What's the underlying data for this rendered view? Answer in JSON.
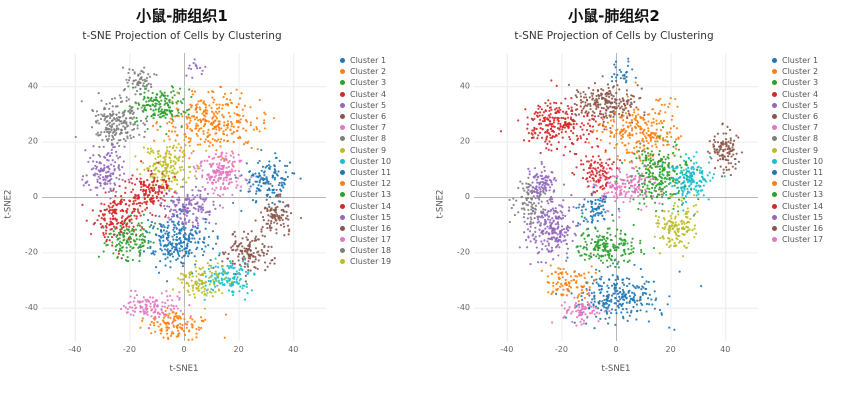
{
  "page": {
    "background": "#ffffff"
  },
  "chart_data": [
    {
      "type": "scatter",
      "panel_title": "小鼠-肺组织1",
      "title": "t-SNE Projection of Cells by Clustering",
      "xlabel": "t-SNE1",
      "ylabel": "t-SNE2",
      "xlim": [
        -52,
        52
      ],
      "ylim": [
        -52,
        52
      ],
      "xticks": [
        -40,
        -20,
        0,
        20,
        40
      ],
      "yticks": [
        -40,
        -20,
        0,
        20,
        40
      ],
      "grid": true,
      "legend_position": "right",
      "point_radius": 1.1,
      "series": [
        {
          "name": "Cluster 1",
          "color": "#1f77b4",
          "lobes": [
            {
              "c": [
                31,
                6
              ],
              "s": [
                5,
                4
              ],
              "n": 140
            }
          ]
        },
        {
          "name": "Cluster 2",
          "color": "#ff7f0e",
          "lobes": [
            {
              "c": [
                10,
                27
              ],
              "s": [
                9,
                5
              ],
              "n": 300
            }
          ]
        },
        {
          "name": "Cluster 3",
          "color": "#2ca02c",
          "lobes": [
            {
              "c": [
                -9,
                33
              ],
              "s": [
                5,
                3.5
              ],
              "n": 160
            }
          ]
        },
        {
          "name": "Cluster 4",
          "color": "#d62728",
          "lobes": [
            {
              "c": [
                -24,
                -7
              ],
              "s": [
                4.5,
                4.5
              ],
              "n": 170
            }
          ]
        },
        {
          "name": "Cluster 5",
          "color": "#9467bd",
          "lobes": [
            {
              "c": [
                2,
                -4
              ],
              "s": [
                4.5,
                4
              ],
              "n": 160
            },
            {
              "c": [
                4,
                46
              ],
              "s": [
                2,
                1.5
              ],
              "n": 15
            }
          ]
        },
        {
          "name": "Cluster 6",
          "color": "#8c564b",
          "lobes": [
            {
              "c": [
                24,
                -20
              ],
              "s": [
                4.5,
                3.5
              ],
              "n": 140
            }
          ]
        },
        {
          "name": "Cluster 7",
          "color": "#e377c2",
          "lobes": [
            {
              "c": [
                13,
                9
              ],
              "s": [
                4.5,
                4
              ],
              "n": 170
            }
          ]
        },
        {
          "name": "Cluster 8",
          "color": "#7f7f7f",
          "lobes": [
            {
              "c": [
                -24,
                27
              ],
              "s": [
                5,
                4.5
              ],
              "n": 200
            }
          ]
        },
        {
          "name": "Cluster 9",
          "color": "#bcbd22",
          "lobes": [
            {
              "c": [
                -6,
                11
              ],
              "s": [
                4.5,
                4
              ],
              "n": 160
            }
          ]
        },
        {
          "name": "Cluster 10",
          "color": "#17becf",
          "lobes": [
            {
              "c": [
                16,
                -29
              ],
              "s": [
                4.5,
                3
              ],
              "n": 130
            }
          ]
        },
        {
          "name": "Cluster 11",
          "color": "#1f77b4",
          "lobes": [
            {
              "c": [
                -3,
                -16
              ],
              "s": [
                5.5,
                4.5
              ],
              "n": 240
            }
          ]
        },
        {
          "name": "Cluster 12",
          "color": "#ff7f0e",
          "lobes": [
            {
              "c": [
                -3,
                -46
              ],
              "s": [
                6,
                2.5
              ],
              "n": 120
            }
          ]
        },
        {
          "name": "Cluster 13",
          "color": "#2ca02c",
          "lobes": [
            {
              "c": [
                -20,
                -16
              ],
              "s": [
                4,
                4
              ],
              "n": 130
            }
          ]
        },
        {
          "name": "Cluster 14",
          "color": "#d62728",
          "lobes": [
            {
              "c": [
                -13,
                2
              ],
              "s": [
                4,
                3.5
              ],
              "n": 150
            }
          ]
        },
        {
          "name": "Cluster 15",
          "color": "#9467bd",
          "lobes": [
            {
              "c": [
                -29,
                9
              ],
              "s": [
                3.5,
                4
              ],
              "n": 130
            }
          ]
        },
        {
          "name": "Cluster 16",
          "color": "#8c564b",
          "lobes": [
            {
              "c": [
                34,
                -6
              ],
              "s": [
                3,
                4
              ],
              "n": 100
            }
          ]
        },
        {
          "name": "Cluster 17",
          "color": "#e377c2",
          "lobes": [
            {
              "c": [
                -11,
                -40
              ],
              "s": [
                5,
                2.5
              ],
              "n": 120
            }
          ]
        },
        {
          "name": "Cluster 18",
          "color": "#7f7f7f",
          "lobes": [
            {
              "c": [
                -16,
                42
              ],
              "s": [
                3,
                2.5
              ],
              "n": 60
            }
          ]
        },
        {
          "name": "Cluster 19",
          "color": "#bcbd22",
          "lobes": [
            {
              "c": [
                6,
                -30
              ],
              "s": [
                4,
                3
              ],
              "n": 110
            }
          ]
        }
      ]
    },
    {
      "type": "scatter",
      "panel_title": "小鼠-肺组织2",
      "title": "t-SNE Projection of Cells by Clustering",
      "xlabel": "t-SNE1",
      "ylabel": "t-SNE2",
      "xlim": [
        -52,
        52
      ],
      "ylim": [
        -52,
        52
      ],
      "xticks": [
        -40,
        -20,
        0,
        20,
        40
      ],
      "yticks": [
        -40,
        -20,
        0,
        20,
        40
      ],
      "grid": true,
      "legend_position": "right",
      "point_radius": 1.1,
      "series": [
        {
          "name": "Cluster 1",
          "color": "#1f77b4",
          "lobes": [
            {
              "c": [
                0,
                -36
              ],
              "s": [
                8,
                4.5
              ],
              "n": 260
            },
            {
              "c": [
                2,
                45
              ],
              "s": [
                2.5,
                2
              ],
              "n": 25
            }
          ]
        },
        {
          "name": "Cluster 2",
          "color": "#ff7f0e",
          "lobes": [
            {
              "c": [
                9,
                24
              ],
              "s": [
                7,
                5.5
              ],
              "n": 260
            }
          ]
        },
        {
          "name": "Cluster 3",
          "color": "#2ca02c",
          "lobes": [
            {
              "c": [
                16,
                8
              ],
              "s": [
                6,
                5.5
              ],
              "n": 260
            }
          ]
        },
        {
          "name": "Cluster 4",
          "color": "#d62728",
          "lobes": [
            {
              "c": [
                -21,
                26
              ],
              "s": [
                6,
                4.5
              ],
              "n": 260
            }
          ]
        },
        {
          "name": "Cluster 5",
          "color": "#9467bd",
          "lobes": [
            {
              "c": [
                -24,
                -11
              ],
              "s": [
                4.5,
                5.5
              ],
              "n": 240
            }
          ]
        },
        {
          "name": "Cluster 6",
          "color": "#8c564b",
          "lobes": [
            {
              "c": [
                -4,
                34
              ],
              "s": [
                6,
                3.5
              ],
              "n": 210
            }
          ]
        },
        {
          "name": "Cluster 7",
          "color": "#e377c2",
          "lobes": [
            {
              "c": [
                2,
                4
              ],
              "s": [
                5,
                3.5
              ],
              "n": 160
            }
          ]
        },
        {
          "name": "Cluster 8",
          "color": "#7f7f7f",
          "lobes": [
            {
              "c": [
                -31,
                -2
              ],
              "s": [
                3,
                4
              ],
              "n": 90
            }
          ]
        },
        {
          "name": "Cluster 9",
          "color": "#bcbd22",
          "lobes": [
            {
              "c": [
                22,
                -11
              ],
              "s": [
                3.5,
                4
              ],
              "n": 140
            }
          ]
        },
        {
          "name": "Cluster 10",
          "color": "#17becf",
          "lobes": [
            {
              "c": [
                27,
                7
              ],
              "s": [
                3.5,
                4
              ],
              "n": 150
            }
          ]
        },
        {
          "name": "Cluster 11",
          "color": "#1f77b4",
          "lobes": [
            {
              "c": [
                -7,
                -4
              ],
              "s": [
                3,
                3
              ],
              "n": 80
            }
          ]
        },
        {
          "name": "Cluster 12",
          "color": "#ff7f0e",
          "lobes": [
            {
              "c": [
                -17,
                -31
              ],
              "s": [
                4,
                3
              ],
              "n": 90
            }
          ]
        },
        {
          "name": "Cluster 13",
          "color": "#2ca02c",
          "lobes": [
            {
              "c": [
                -3,
                -18
              ],
              "s": [
                5,
                3.5
              ],
              "n": 180
            }
          ]
        },
        {
          "name": "Cluster 14",
          "color": "#d62728",
          "lobes": [
            {
              "c": [
                -7,
                9
              ],
              "s": [
                3,
                3
              ],
              "n": 90
            }
          ]
        },
        {
          "name": "Cluster 15",
          "color": "#9467bd",
          "lobes": [
            {
              "c": [
                -27,
                5
              ],
              "s": [
                3,
                3
              ],
              "n": 90
            }
          ]
        },
        {
          "name": "Cluster 16",
          "color": "#8c564b",
          "lobes": [
            {
              "c": [
                40,
                17
              ],
              "s": [
                2.5,
                4
              ],
              "n": 110
            }
          ]
        },
        {
          "name": "Cluster 17",
          "color": "#e377c2",
          "lobes": [
            {
              "c": [
                -13,
                -41
              ],
              "s": [
                4,
                2
              ],
              "n": 70
            }
          ]
        }
      ]
    }
  ],
  "style": {
    "grid_color": "#ececec",
    "zero_line_color": "#b8b8b8",
    "tick_label_color": "#666666"
  }
}
